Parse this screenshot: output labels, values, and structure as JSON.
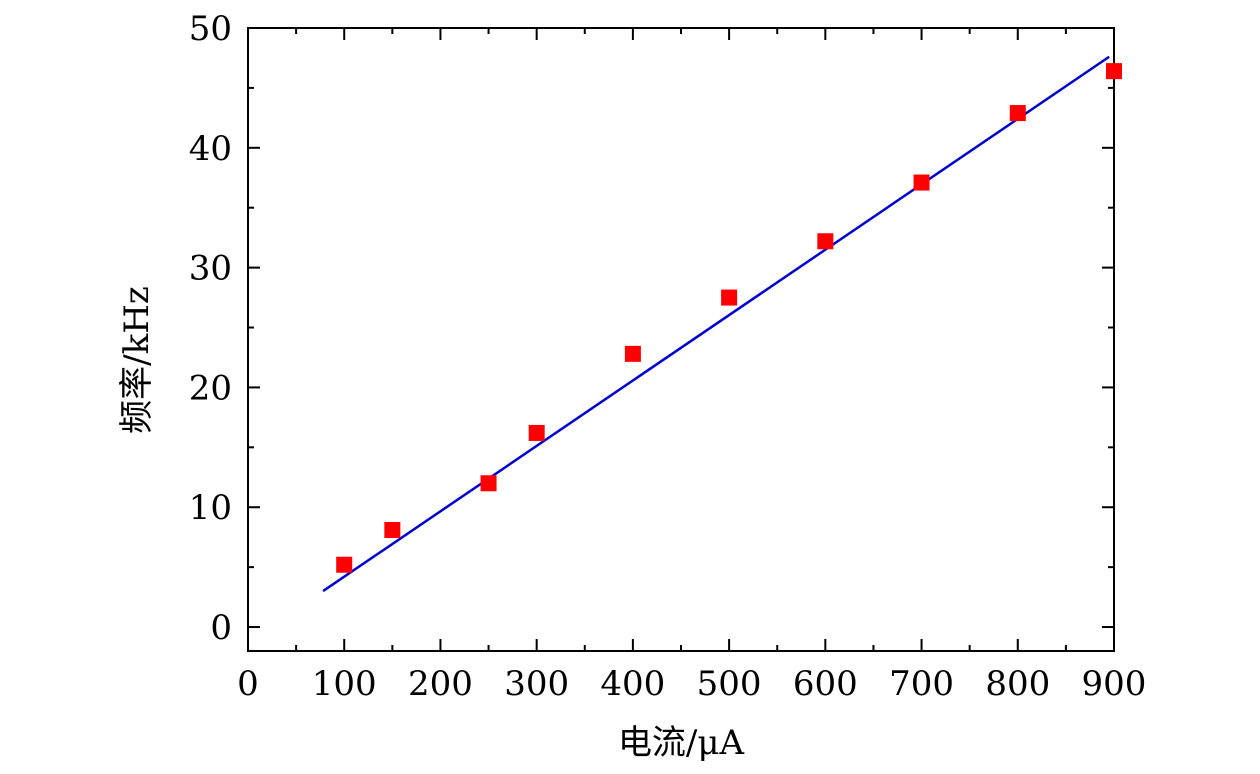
{
  "chart_data": {
    "type": "scatter",
    "title": "",
    "xlabel": "电流/μA",
    "ylabel": "频率/kHz",
    "xlim": [
      0,
      900
    ],
    "ylim": [
      -2,
      50
    ],
    "xticks": [
      0,
      100,
      200,
      300,
      400,
      500,
      600,
      700,
      800,
      900
    ],
    "yticks": [
      0,
      10,
      20,
      30,
      40,
      50
    ],
    "grid": false,
    "legend": "none",
    "colors": {
      "points": "#ff0000",
      "fit": "#0000cc",
      "axis": "#000000"
    },
    "series": [
      {
        "marker": "square",
        "x": [
          100,
          150,
          250,
          300,
          400,
          500,
          600,
          700,
          800,
          900
        ],
        "y": [
          5.2,
          8.1,
          12.0,
          16.2,
          22.8,
          27.5,
          32.2,
          37.1,
          42.9,
          46.4
        ]
      }
    ],
    "fit_line": {
      "x": [
        78,
        895
      ],
      "y": [
        3.0,
        47.6
      ]
    }
  }
}
